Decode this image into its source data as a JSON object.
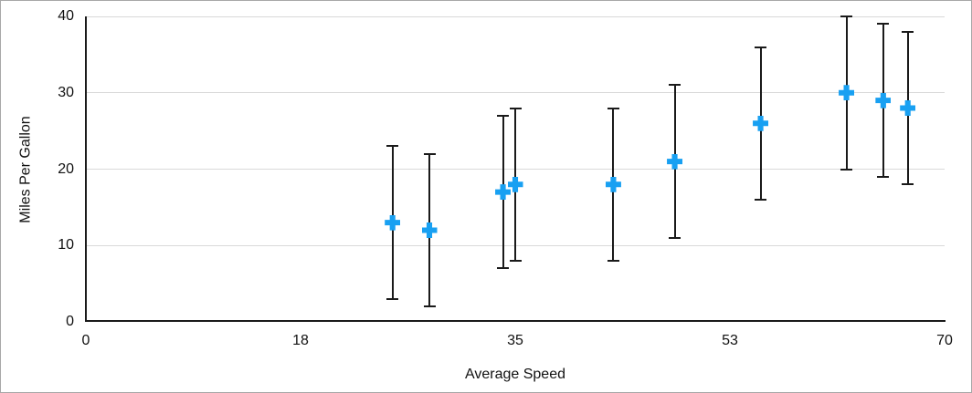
{
  "chart_data": {
    "type": "scatter",
    "title": "",
    "xlabel": "Average Speed",
    "ylabel": "Miles Per Gallon",
    "xlim": [
      0,
      70
    ],
    "ylim": [
      0,
      40
    ],
    "x_ticks": [
      {
        "label": "0",
        "value": 0
      },
      {
        "label": "18",
        "value": 17.5
      },
      {
        "label": "35",
        "value": 35
      },
      {
        "label": "53",
        "value": 52.5
      },
      {
        "label": "70",
        "value": 70
      }
    ],
    "y_ticks": [
      {
        "label": "0",
        "value": 0
      },
      {
        "label": "10",
        "value": 10
      },
      {
        "label": "20",
        "value": 20
      },
      {
        "label": "30",
        "value": 30
      },
      {
        "label": "40",
        "value": 40
      }
    ],
    "grid": "horizontal",
    "legend": "none",
    "series": [
      {
        "name": "Miles Per Gallon",
        "marker": "plus",
        "error_bars": "vertical, symmetric",
        "points": [
          {
            "x": 25,
            "y": 13,
            "y_error": 10
          },
          {
            "x": 28,
            "y": 12,
            "y_error": 10
          },
          {
            "x": 34,
            "y": 17,
            "y_error": 10
          },
          {
            "x": 35,
            "y": 18,
            "y_error": 10
          },
          {
            "x": 43,
            "y": 18,
            "y_error": 10
          },
          {
            "x": 48,
            "y": 21,
            "y_error": 10
          },
          {
            "x": 55,
            "y": 26,
            "y_error": 10
          },
          {
            "x": 62,
            "y": 30,
            "y_error": 10
          },
          {
            "x": 65,
            "y": 29,
            "y_error": 10
          },
          {
            "x": 67,
            "y": 28,
            "y_error": 10
          }
        ]
      }
    ],
    "colors": {
      "marker": "#18A0F2",
      "error_bar": "#1a1a1a",
      "axis": "#1a1a1a",
      "gridline": "#d9d9d9",
      "text": "#111111",
      "background": "#ffffff",
      "frame_border": "#a8a8a8"
    }
  }
}
